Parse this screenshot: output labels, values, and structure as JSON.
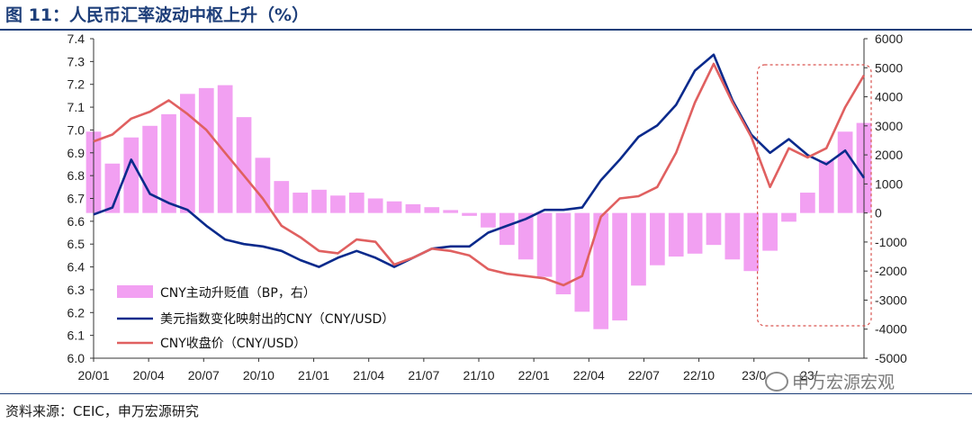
{
  "title": "图 11：人民币汇率波动中枢上升（%）",
  "source": "资料来源：CEIC，申万宏源研究",
  "watermark": "申万宏源宏观",
  "colors": {
    "bars": "#f08ff0",
    "index_line": "#0a2a8c",
    "close_line": "#e06060",
    "highlight_box": "#d9534f"
  },
  "chart_data": {
    "type": "bar+line",
    "x_tick_labels": [
      "20/01",
      "20/04",
      "20/07",
      "20/10",
      "21/01",
      "21/04",
      "21/07",
      "21/10",
      "22/01",
      "22/04",
      "22/07",
      "22/10",
      "23/0",
      "23/"
    ],
    "x_range": [
      "2020-01",
      "2023-06"
    ],
    "ylim_left": [
      6.0,
      7.4
    ],
    "yticks_left": [
      "6.0",
      "6.1",
      "6.2",
      "6.3",
      "6.4",
      "6.5",
      "6.6",
      "6.7",
      "6.8",
      "6.9",
      "7.0",
      "7.1",
      "7.2",
      "7.3",
      "7.4"
    ],
    "ylim_right": [
      -5000,
      6000
    ],
    "yticks_right": [
      "-5000",
      "-4000",
      "-3000",
      "-2000",
      "-1000",
      "0",
      "1000",
      "2000",
      "3000",
      "4000",
      "5000",
      "6000"
    ],
    "grid": false,
    "legend_position": "bottom-left",
    "highlight": {
      "from": "2023-01",
      "to": "2023-06",
      "style": "dashed-box"
    },
    "series": [
      {
        "name": "CNY主动升贬值（BP，右）",
        "axis": "right",
        "kind": "bar",
        "t": [
          "2020-01",
          "2020-02",
          "2020-03",
          "2020-04",
          "2020-05",
          "2020-06",
          "2020-07",
          "2020-08",
          "2020-09",
          "2020-10",
          "2020-11",
          "2020-12",
          "2021-01",
          "2021-02",
          "2021-03",
          "2021-04",
          "2021-05",
          "2021-06",
          "2021-07",
          "2021-08",
          "2021-09",
          "2021-10",
          "2021-11",
          "2021-12",
          "2022-01",
          "2022-02",
          "2022-03",
          "2022-04",
          "2022-05",
          "2022-06",
          "2022-07",
          "2022-08",
          "2022-09",
          "2022-10",
          "2022-11",
          "2022-12",
          "2023-01",
          "2023-02",
          "2023-03",
          "2023-04",
          "2023-05",
          "2023-06"
        ],
        "values": [
          2800,
          1700,
          2600,
          3000,
          3400,
          4100,
          4300,
          4400,
          3300,
          1900,
          1100,
          700,
          800,
          600,
          700,
          500,
          400,
          300,
          200,
          100,
          -100,
          -500,
          -1100,
          -1600,
          -2200,
          -2800,
          -3400,
          -4000,
          -3700,
          -2500,
          -1800,
          -1500,
          -1400,
          -1100,
          -1600,
          -2000,
          -1300,
          -300,
          700,
          1800,
          2800,
          3100
        ]
      },
      {
        "name": "美元指数变化映射出的CNY（CNY/USD）",
        "axis": "left",
        "kind": "line",
        "t": [
          "2020-01",
          "2020-02",
          "2020-03",
          "2020-04",
          "2020-05",
          "2020-06",
          "2020-07",
          "2020-08",
          "2020-09",
          "2020-10",
          "2020-11",
          "2020-12",
          "2021-01",
          "2021-02",
          "2021-03",
          "2021-04",
          "2021-05",
          "2021-06",
          "2021-07",
          "2021-08",
          "2021-09",
          "2021-10",
          "2021-11",
          "2021-12",
          "2022-01",
          "2022-02",
          "2022-03",
          "2022-04",
          "2022-05",
          "2022-06",
          "2022-07",
          "2022-08",
          "2022-09",
          "2022-10",
          "2022-11",
          "2022-12",
          "2023-01",
          "2023-02",
          "2023-03",
          "2023-04",
          "2023-05",
          "2023-06"
        ],
        "values": [
          6.63,
          6.66,
          6.87,
          6.72,
          6.68,
          6.65,
          6.58,
          6.52,
          6.5,
          6.49,
          6.47,
          6.43,
          6.4,
          6.44,
          6.47,
          6.44,
          6.4,
          6.44,
          6.48,
          6.49,
          6.49,
          6.55,
          6.58,
          6.61,
          6.65,
          6.65,
          6.66,
          6.78,
          6.87,
          6.97,
          7.02,
          7.11,
          7.26,
          7.33,
          7.13,
          6.98,
          6.9,
          6.96,
          6.89,
          6.85,
          6.91,
          6.79
        ]
      },
      {
        "name": "CNY收盘价（CNY/USD）",
        "axis": "left",
        "kind": "line",
        "t": [
          "2020-01",
          "2020-02",
          "2020-03",
          "2020-04",
          "2020-05",
          "2020-06",
          "2020-07",
          "2020-08",
          "2020-09",
          "2020-10",
          "2020-11",
          "2020-12",
          "2021-01",
          "2021-02",
          "2021-03",
          "2021-04",
          "2021-05",
          "2021-06",
          "2021-07",
          "2021-08",
          "2021-09",
          "2021-10",
          "2021-11",
          "2021-12",
          "2022-01",
          "2022-02",
          "2022-03",
          "2022-04",
          "2022-05",
          "2022-06",
          "2022-07",
          "2022-08",
          "2022-09",
          "2022-10",
          "2022-11",
          "2022-12",
          "2023-01",
          "2023-02",
          "2023-03",
          "2023-04",
          "2023-05",
          "2023-06"
        ],
        "values": [
          6.95,
          6.98,
          7.05,
          7.08,
          7.13,
          7.07,
          7.0,
          6.9,
          6.8,
          6.7,
          6.58,
          6.53,
          6.47,
          6.46,
          6.52,
          6.51,
          6.41,
          6.44,
          6.48,
          6.47,
          6.45,
          6.39,
          6.37,
          6.36,
          6.35,
          6.32,
          6.36,
          6.62,
          6.7,
          6.71,
          6.75,
          6.9,
          7.12,
          7.29,
          7.12,
          6.97,
          6.75,
          6.92,
          6.88,
          6.92,
          7.1,
          7.24
        ]
      }
    ]
  }
}
